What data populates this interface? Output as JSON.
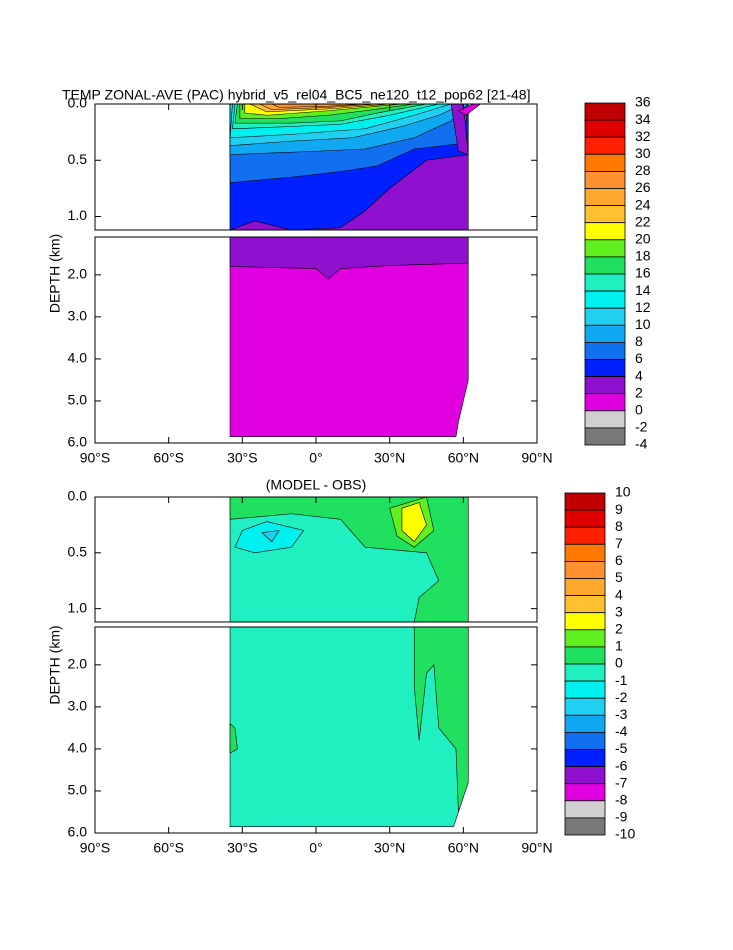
{
  "chart_data": [
    {
      "type": "contour",
      "title": "TEMP ZONAL-AVE (PAC) hybrid_v5_rel04_BC5_ne120_t12_pop62 [21-48]",
      "ylabel": "DEPTH (km)",
      "xlim": [
        -90,
        90
      ],
      "xticks": [
        {
          "value": -90,
          "label": "90°S"
        },
        {
          "value": -60,
          "label": "60°S"
        },
        {
          "value": -30,
          "label": "30°S"
        },
        {
          "value": 0,
          "label": "0°"
        },
        {
          "value": 30,
          "label": "30°N"
        },
        {
          "value": 60,
          "label": "60°N"
        },
        {
          "value": 90,
          "label": "90°N"
        }
      ],
      "ylim": [
        0,
        1.12
      ],
      "yticks": [
        {
          "value": 0,
          "label": "0.0"
        },
        0.5,
        {
          "value": 1,
          "label": "1.0"
        }
      ],
      "lower_ylim": [
        1.1,
        6
      ],
      "lower_yticks": [
        {
          "value": 2,
          "label": "2.0"
        },
        {
          "value": 3,
          "label": "3.0"
        },
        {
          "value": 4,
          "label": "4.0"
        },
        {
          "value": 5,
          "label": "5.0"
        },
        {
          "value": 6,
          "label": "6.0"
        }
      ],
      "levels": [
        36,
        34,
        32,
        30,
        28,
        26,
        24,
        22,
        20,
        18,
        16,
        14,
        12,
        10,
        8,
        6,
        4,
        2,
        0,
        -2,
        -4
      ],
      "colors": [
        "#c00000",
        "#e00000",
        "#ff2000",
        "#ff7800",
        "#ff9030",
        "#ffa830",
        "#ffc030",
        "#ffff00",
        "#60f020",
        "#20e060",
        "#20f0c0",
        "#00f0f0",
        "#20d0f0",
        "#10a8f0",
        "#1070f0",
        "#0020ff",
        "#9010d0",
        "#e000e0",
        "#d0d0d0",
        "#787878"
      ]
    },
    {
      "type": "contour",
      "title": "(MODEL - OBS)",
      "ylabel": "DEPTH (km)",
      "xlim": [
        -90,
        90
      ],
      "xticks": [
        {
          "value": -90,
          "label": "90°S"
        },
        {
          "value": -60,
          "label": "60°S"
        },
        {
          "value": -30,
          "label": "30°S"
        },
        {
          "value": 0,
          "label": "0°"
        },
        {
          "value": 30,
          "label": "30°N"
        },
        {
          "value": 60,
          "label": "60°N"
        },
        {
          "value": 90,
          "label": "90°N"
        }
      ],
      "ylim": [
        0,
        1.12
      ],
      "yticks": [
        {
          "value": 0,
          "label": "0.0"
        },
        0.5,
        {
          "value": 1,
          "label": "1.0"
        }
      ],
      "lower_ylim": [
        1.1,
        6
      ],
      "lower_yticks": [
        {
          "value": 2,
          "label": "2.0"
        },
        {
          "value": 3,
          "label": "3.0"
        },
        {
          "value": 4,
          "label": "4.0"
        },
        {
          "value": 5,
          "label": "5.0"
        },
        {
          "value": 6,
          "label": "6.0"
        }
      ],
      "levels": [
        10,
        9,
        8,
        7,
        6,
        5,
        4,
        3,
        2,
        1,
        0,
        -1,
        -2,
        -3,
        -4,
        -5,
        -6,
        -7,
        -8,
        -9,
        -10
      ],
      "colors": [
        "#c00000",
        "#e00000",
        "#ff2000",
        "#ff7800",
        "#ff9030",
        "#ffa830",
        "#ffc030",
        "#ffff00",
        "#60f020",
        "#20e060",
        "#20f0c0",
        "#00f0f0",
        "#20d0f0",
        "#10a8f0",
        "#1070f0",
        "#0020ff",
        "#9010d0",
        "#e000e0",
        "#d0d0d0",
        "#787878"
      ]
    }
  ]
}
